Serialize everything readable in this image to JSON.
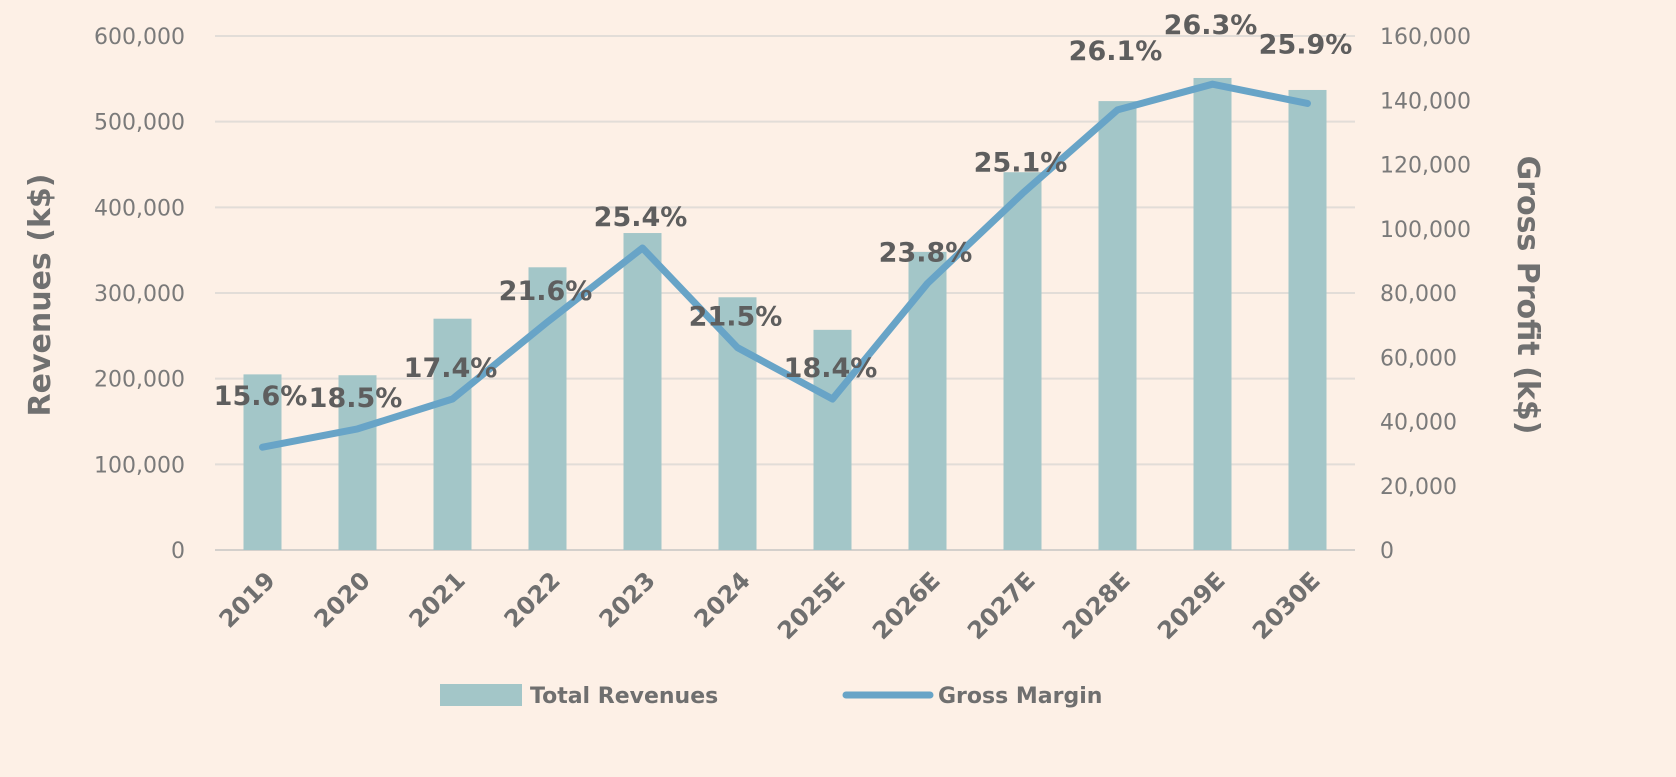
{
  "chart_data": {
    "type": "bar+line",
    "categories": [
      "2019",
      "2020",
      "2021",
      "2022",
      "2023",
      "2024",
      "2025E",
      "2026E",
      "2027E",
      "2028E",
      "2029E",
      "2030E"
    ],
    "series": [
      {
        "name": "Total Revenues",
        "type": "bar",
        "axis": "left",
        "color": "#a3c6c8",
        "values": [
          205000,
          204000,
          270000,
          330000,
          370000,
          295000,
          257000,
          348000,
          441000,
          524000,
          551000,
          537000
        ]
      },
      {
        "name": "Gross Margin",
        "type": "line",
        "axis": "right",
        "color": "#68a4c7",
        "values": [
          32000,
          37700,
          47000,
          71000,
          94000,
          63000,
          47000,
          83000,
          111000,
          137000,
          145000,
          139000
        ],
        "labels": [
          "15.6%",
          "18.5%",
          "17.4%",
          "21.6%",
          "25.4%",
          "21.5%",
          "18.4%",
          "23.8%",
          "25.1%",
          "26.1%",
          "26.3%",
          "25.9%"
        ]
      }
    ],
    "ylabel": "Revenues (k$)",
    "y2label": "Gross Profit (k$)",
    "ylim": [
      0,
      600000
    ],
    "y2lim": [
      0,
      160000
    ],
    "yticks": [
      "0",
      "100,000",
      "200,000",
      "300,000",
      "400,000",
      "500,000",
      "600,000"
    ],
    "y2ticks": [
      "0",
      "20,000",
      "40,000",
      "60,000",
      "80,000",
      "100,000",
      "120,000",
      "140,000",
      "160,000"
    ],
    "grid": true,
    "legend": "bottom",
    "background": "#fdf0e6"
  }
}
